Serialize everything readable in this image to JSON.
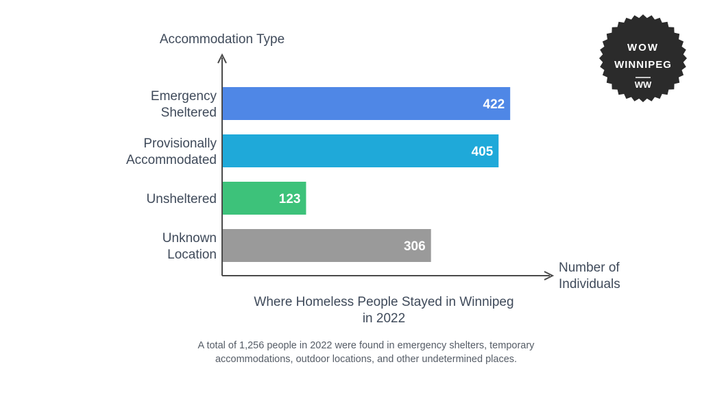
{
  "chart_data": {
    "type": "bar",
    "orientation": "horizontal",
    "title": [
      "Where Homeless People Stayed in Winnipeg",
      "in 2022"
    ],
    "caption": [
      "A total of 1,256 people in 2022 were found in emergency shelters, temporary",
      "accommodations, outdoor locations, and other undetermined places."
    ],
    "ylabel": "Accommodation Type",
    "xlabel": [
      "Number of",
      "Individuals"
    ],
    "xlim": [
      0,
      470
    ],
    "grid": false,
    "legend": "none",
    "categories": [
      [
        "Emergency",
        "Sheltered"
      ],
      [
        "Provisionally",
        "Accommodated"
      ],
      [
        "Unsheltered"
      ],
      [
        "Unknown",
        "Location"
      ]
    ],
    "values": [
      422,
      405,
      123,
      306
    ],
    "colors": [
      "#4f87e6",
      "#1fa9d9",
      "#3dc27a",
      "#9a9a9a"
    ]
  },
  "logo": {
    "lines": [
      "WOW",
      "WINNIPEG",
      "WW"
    ],
    "background": "#2b2b2b"
  },
  "colors": {
    "axis": "#4a4a4a",
    "text": "#3f4a5a"
  }
}
